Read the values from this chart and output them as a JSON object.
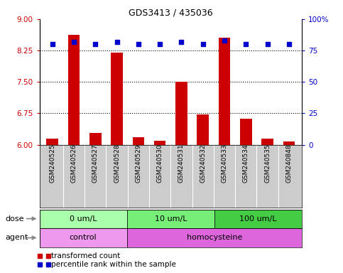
{
  "title": "GDS3413 / 435036",
  "samples": [
    "GSM240525",
    "GSM240526",
    "GSM240527",
    "GSM240528",
    "GSM240529",
    "GSM240530",
    "GSM240531",
    "GSM240532",
    "GSM240533",
    "GSM240534",
    "GSM240535",
    "GSM240848"
  ],
  "transformed_count": [
    6.15,
    8.62,
    6.28,
    8.2,
    6.18,
    6.1,
    7.5,
    6.72,
    8.55,
    6.62,
    6.15,
    6.07
  ],
  "percentile_rank": [
    80,
    82,
    80,
    82,
    80,
    80,
    82,
    80,
    83,
    80,
    80,
    80
  ],
  "ylim_left": [
    6,
    9
  ],
  "ylim_right": [
    0,
    100
  ],
  "yticks_left": [
    6,
    6.75,
    7.5,
    8.25,
    9
  ],
  "yticks_right": [
    0,
    25,
    50,
    75,
    100
  ],
  "hlines": [
    6.75,
    7.5,
    8.25
  ],
  "bar_color": "#cc0000",
  "dot_color": "#0000cc",
  "dose_groups": [
    {
      "label": "0 um/L",
      "start": 0,
      "end": 4,
      "color": "#aaffaa"
    },
    {
      "label": "10 um/L",
      "start": 4,
      "end": 8,
      "color": "#77ee77"
    },
    {
      "label": "100 um/L",
      "start": 8,
      "end": 12,
      "color": "#44cc44"
    }
  ],
  "agent_groups": [
    {
      "label": "control",
      "start": 0,
      "end": 4,
      "color": "#ee99ee"
    },
    {
      "label": "homocysteine",
      "start": 4,
      "end": 12,
      "color": "#dd66dd"
    }
  ],
  "dose_label": "dose",
  "agent_label": "agent",
  "legend_items": [
    {
      "color": "#cc0000",
      "label": "transformed count"
    },
    {
      "color": "#0000cc",
      "label": "percentile rank within the sample"
    }
  ],
  "background_color": "#ffffff",
  "label_bg": "#cccccc",
  "tick_color_left": "#cc0000",
  "tick_color_right": "#0000cc"
}
